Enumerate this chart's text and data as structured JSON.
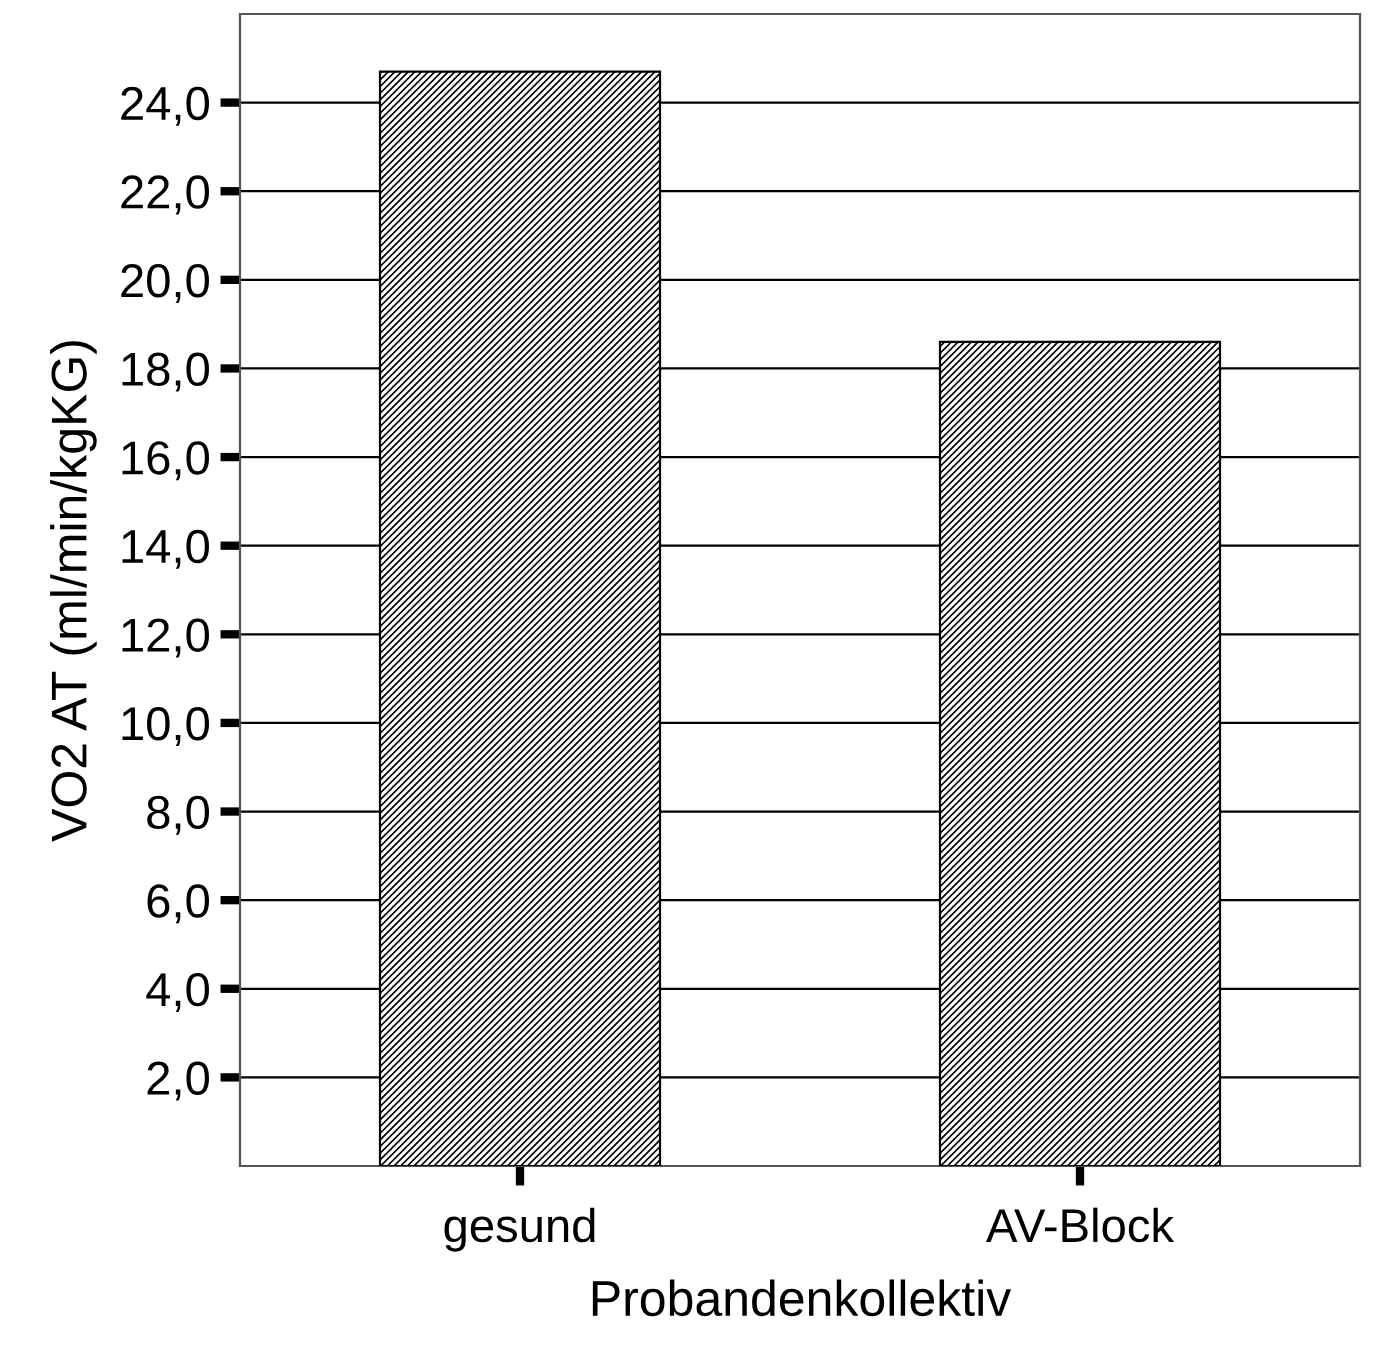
{
  "chart_data": {
    "type": "bar",
    "xlabel": "Probandenkollektiv",
    "ylabel": "VO2 AT (ml/min/kgKG)",
    "categories": [
      "gesund",
      "AV-Block"
    ],
    "values": [
      24.7,
      18.6
    ],
    "color": "#000000",
    "ylim": [
      0,
      26
    ],
    "yticks": [
      {
        "value": 2,
        "label": "2,0"
      },
      {
        "value": 4,
        "label": "4,0"
      },
      {
        "value": 6,
        "label": "6,0"
      },
      {
        "value": 8,
        "label": "8,0"
      },
      {
        "value": 10,
        "label": "10,0"
      },
      {
        "value": 12,
        "label": "12,0"
      },
      {
        "value": 14,
        "label": "14,0"
      },
      {
        "value": 16,
        "label": "16,0"
      },
      {
        "value": 18,
        "label": "18,0"
      },
      {
        "value": 20,
        "label": "20,0"
      },
      {
        "value": 22,
        "label": "22,0"
      },
      {
        "value": 24,
        "label": "24,0"
      }
    ],
    "grid": "y"
  }
}
